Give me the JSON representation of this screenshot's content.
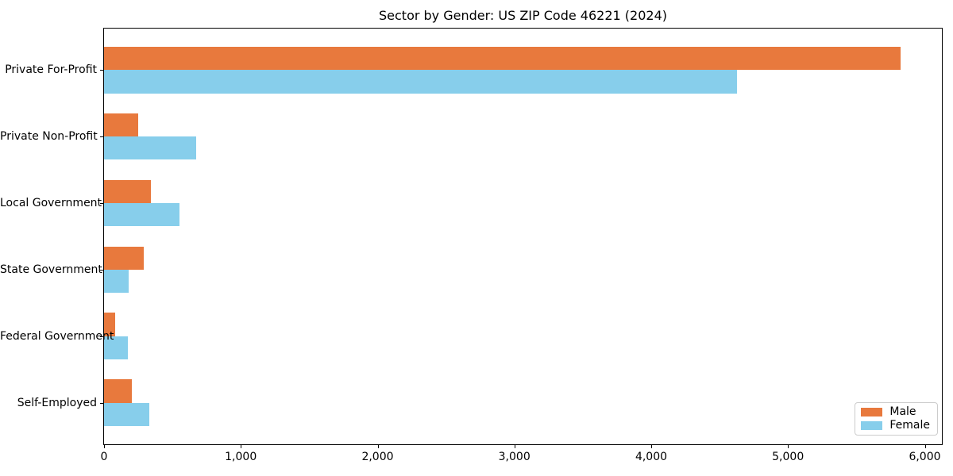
{
  "chart_data": {
    "type": "bar",
    "orientation": "horizontal",
    "title": "Sector by Gender: US ZIP Code 46221 (2024)",
    "xlabel": "",
    "ylabel": "",
    "grid": false,
    "categories": [
      "Private For-Profit",
      "Private Non-Profit",
      "Local Government",
      "State Government",
      "Federal Government",
      "Self-Employed"
    ],
    "series": [
      {
        "name": "Male",
        "color": "#e8793d",
        "values": [
          5825,
          250,
          340,
          290,
          80,
          205
        ]
      },
      {
        "name": "Female",
        "color": "#87ceeb",
        "values": [
          4625,
          675,
          550,
          180,
          175,
          330
        ]
      }
    ],
    "xlim": [
      0,
      6125
    ],
    "xticks": {
      "values": [
        0,
        1000,
        2000,
        3000,
        4000,
        5000,
        6000
      ],
      "labels": [
        "0",
        "1,000",
        "2,000",
        "3,000",
        "4,000",
        "5,000",
        "6,000"
      ]
    },
    "legend": {
      "position": "lower right",
      "labels": [
        "Male",
        "Female"
      ]
    }
  },
  "colors": {
    "axis": "#000000",
    "text": "#000000",
    "legend_border": "#cccccc",
    "background": "#ffffff"
  }
}
